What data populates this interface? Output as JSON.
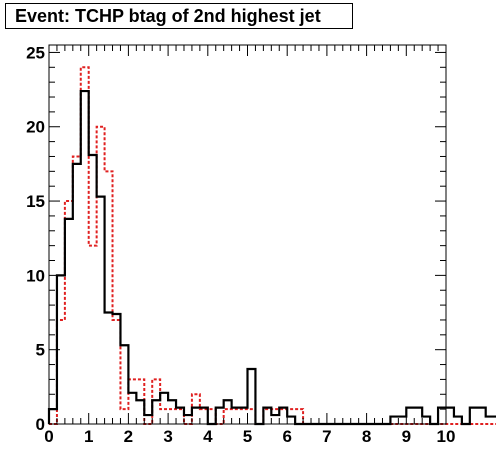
{
  "chart_data": {
    "type": "histogram",
    "title": "Event: TCHP btag of 2nd highest jet",
    "xlim": [
      0,
      10
    ],
    "ylim": [
      0,
      25.5
    ],
    "bin_width": 0.2,
    "x_ticks": [
      0,
      1,
      2,
      3,
      4,
      5,
      6,
      7,
      8,
      9,
      10
    ],
    "y_ticks": [
      0,
      5,
      10,
      15,
      20,
      25
    ],
    "series": [
      {
        "style": "solid",
        "color": "#000000",
        "values": [
          1,
          10,
          13.8,
          17.5,
          22.4,
          18.1,
          15.3,
          7.5,
          7.4,
          5.3,
          2.1,
          1.6,
          0.6,
          1.6,
          2.1,
          1.6,
          1.1,
          0.6,
          1.1,
          1.1,
          0,
          1.1,
          1.6,
          1.1,
          1.1,
          3.7,
          0,
          1.1,
          0.6,
          1.1,
          0.5,
          0,
          0,
          0,
          0,
          0,
          0,
          0,
          0,
          0,
          0,
          0,
          0,
          0.5,
          0.5,
          1.1,
          1.1,
          0.5,
          0,
          1.1,
          1.1,
          0.5,
          0,
          1.1,
          1.1,
          0.5,
          0.5,
          1.1,
          0,
          0,
          0,
          0,
          0,
          0,
          0,
          0,
          0,
          0,
          0,
          0,
          0,
          0,
          0,
          0,
          0,
          0,
          0,
          0,
          0,
          0,
          0,
          0,
          0,
          0,
          0,
          0,
          0,
          0,
          0,
          0,
          0,
          0,
          0,
          0,
          0,
          0,
          0,
          0,
          0,
          0
        ]
      },
      {
        "style": "dashed",
        "color": "#e02020",
        "values": [
          0,
          7,
          15,
          18,
          24,
          12,
          20,
          17,
          7,
          1,
          3,
          3,
          0,
          3,
          1,
          1,
          1,
          0,
          2,
          1,
          1,
          0,
          1,
          1,
          1,
          1,
          0,
          1,
          1,
          1,
          1,
          1,
          0,
          0,
          0,
          0,
          0,
          0,
          0,
          0,
          0,
          0,
          0,
          0,
          0,
          0,
          0,
          0,
          0,
          0,
          0,
          0,
          0,
          0,
          0,
          0,
          0,
          0,
          0,
          0,
          0,
          0,
          0,
          0,
          0,
          0,
          0,
          0,
          0,
          0,
          0,
          0,
          0,
          0,
          0,
          0,
          0,
          0,
          0,
          0,
          0,
          0,
          0,
          0,
          0,
          0,
          0,
          0,
          0,
          0,
          0,
          0,
          0,
          0,
          0,
          0,
          0,
          0,
          0,
          0
        ]
      }
    ]
  }
}
